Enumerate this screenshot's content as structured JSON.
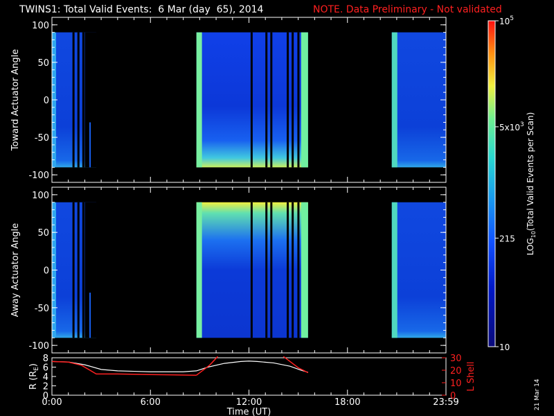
{
  "header": {
    "title": "TWINS1: Total Valid Events:  6 Mar (day  65), 2014",
    "note": "NOTE. Data Preliminary - Not validated"
  },
  "footer": {
    "date_stamp": "21 Mar 14"
  },
  "colors": {
    "background": "#000000",
    "axis": "#ffffff",
    "note": "#ff2020",
    "l_shell": "#ff2020",
    "radius": "#ffffff"
  },
  "chart_data": [
    {
      "type": "heatmap",
      "title": "",
      "ylabel": "Toward Actuator Angle",
      "xlim": [
        0,
        24
      ],
      "ylim": [
        -110,
        110
      ],
      "y_ticks": [
        100,
        50,
        0,
        -50,
        -100
      ],
      "y_tick_labels": [
        "100",
        "50",
        "0",
        "-50",
        "-100"
      ],
      "data_range": [
        -90,
        90
      ],
      "gap_hours": [
        1.08,
        1.45,
        1.7
      ],
      "data_blocks": [
        {
          "x": [
            0,
            2.7
          ]
        },
        {
          "x": [
            8.8,
            15.6
          ]
        },
        {
          "x": [
            20.7,
            24
          ]
        }
      ]
    },
    {
      "type": "heatmap",
      "title": "",
      "ylabel": "Away Actuator Angle",
      "xlim": [
        0,
        24
      ],
      "ylim": [
        -110,
        110
      ],
      "y_ticks": [
        100,
        50,
        0,
        -50,
        -100
      ],
      "y_tick_labels": [
        "100",
        "50",
        "0",
        "-50",
        "-100"
      ],
      "data_range": [
        -90,
        90
      ],
      "data_blocks": [
        {
          "x": [
            0,
            2.7
          ]
        },
        {
          "x": [
            8.8,
            15.6
          ]
        },
        {
          "x": [
            20.7,
            24
          ]
        }
      ]
    },
    {
      "type": "line",
      "title": "",
      "xlabel": "Time (UT)",
      "x_tick_labels": [
        "0:00",
        "6:00",
        "12:00",
        "18:00",
        "23:59"
      ],
      "x_ticks": [
        0,
        6,
        12,
        18,
        24
      ],
      "ylabel_left": "R (R",
      "ylabel_left_sub": "E",
      "ylabel_left_close": ")",
      "ylabel_right": "L Shell",
      "ylim_left": [
        0,
        8
      ],
      "ylim_right": [
        0,
        30
      ],
      "y_left_ticks": [
        "8",
        "6",
        "4",
        "2",
        "0"
      ],
      "y_right_ticks": [
        "30",
        "20",
        "10",
        "0"
      ],
      "series": [
        {
          "axis": "left",
          "color": "#ffffff",
          "x": [
            0,
            1,
            2,
            3,
            4,
            5,
            6,
            7,
            8,
            8.8,
            9.5,
            10.5,
            11.5,
            12,
            12.5,
            13.5,
            14.5,
            15.2,
            15.6
          ],
          "y": [
            7.2,
            7.1,
            6.5,
            5.5,
            5.2,
            5.1,
            5.0,
            5.0,
            5.0,
            5.2,
            6.0,
            6.8,
            7.2,
            7.3,
            7.2,
            6.9,
            6.2,
            5.3,
            4.9
          ]
        },
        {
          "axis": "right",
          "color": "#ff2020",
          "segments": [
            {
              "x": [
                0,
                1,
                1.8,
                2.7,
                4,
                6,
                8.8
              ],
              "y": [
                27,
                26.5,
                24,
                17,
                17,
                16.5,
                16
              ]
            },
            {
              "x": [
                8.8,
                9.6,
                10.1
              ],
              "y": [
                16,
                24,
                31
              ]
            },
            {
              "x": [
                14.1,
                15.0,
                15.6
              ],
              "y": [
                31,
                22,
                18
              ]
            }
          ]
        }
      ]
    },
    {
      "type": "colorbar",
      "label": "LOG",
      "label_sub": "10",
      "label_rest": "(Total Valid Events per Scan)",
      "scale": "log",
      "range": [
        10,
        100000
      ],
      "ticks": [
        {
          "value": 100000,
          "base": "10",
          "exp": "5"
        },
        {
          "value": 5000,
          "base": "5x10",
          "exp": "3"
        },
        {
          "value": 215,
          "base": "215",
          "exp": ""
        },
        {
          "value": 10,
          "base": "10",
          "exp": ""
        }
      ]
    }
  ]
}
